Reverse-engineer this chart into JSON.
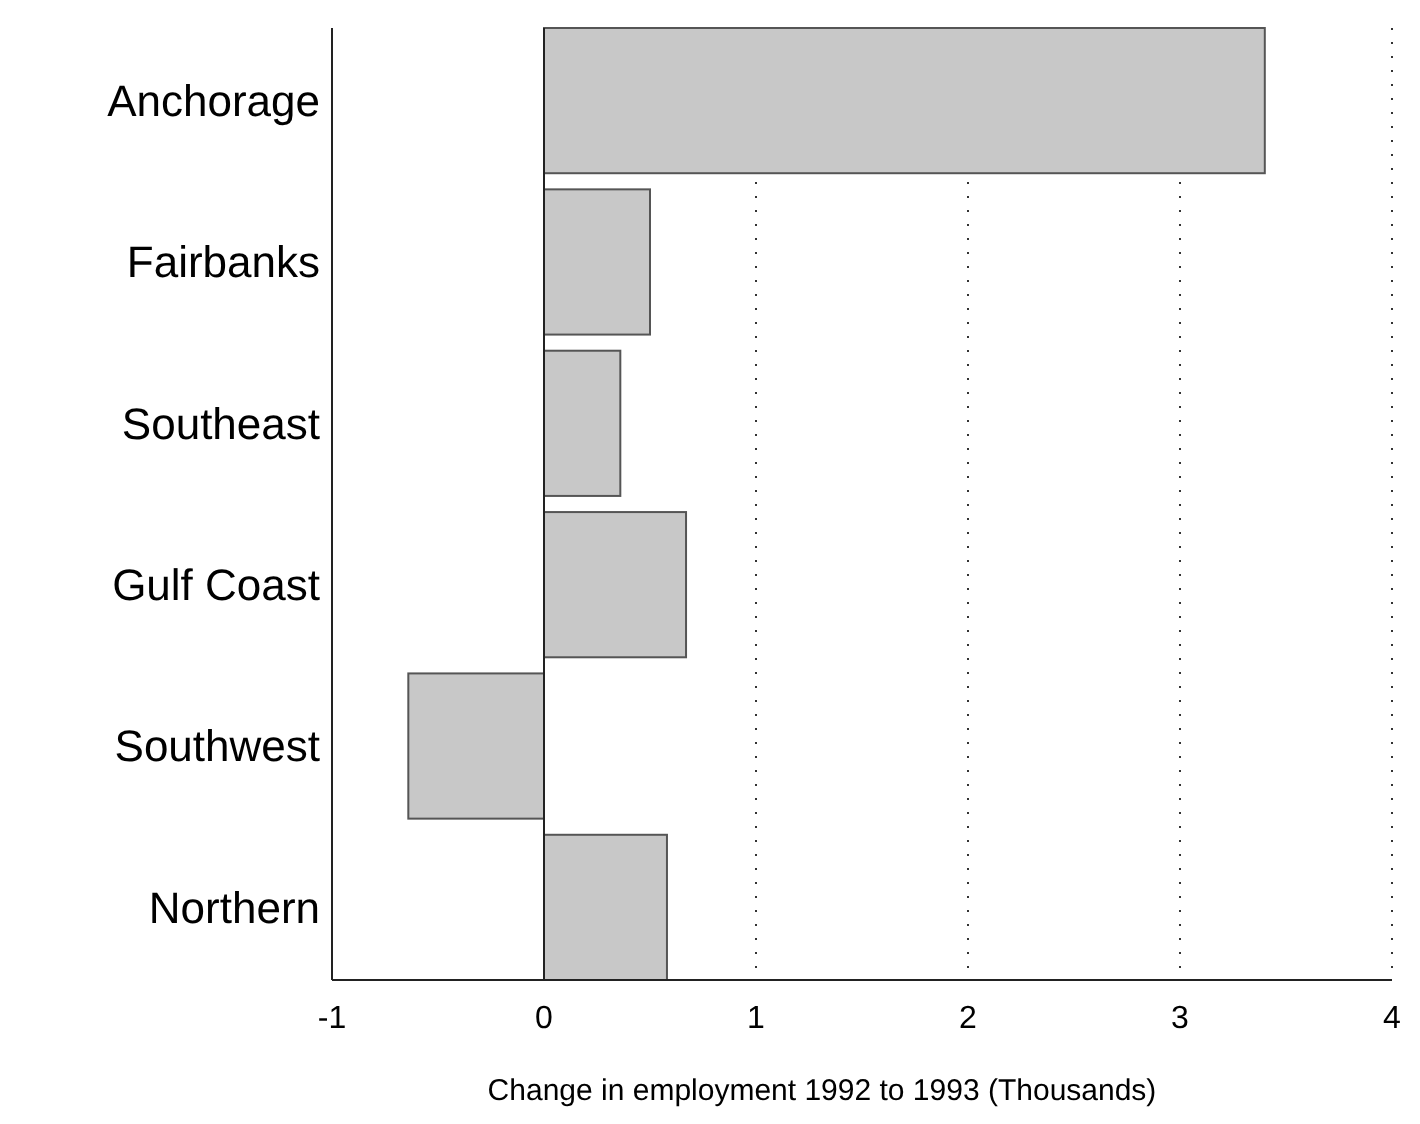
{
  "chart_data": {
    "type": "bar",
    "orientation": "horizontal",
    "xlabel": "Change in employment 1992 to 1993 (Thousands)",
    "categories": [
      "Anchorage",
      "Fairbanks",
      "Southeast",
      "Gulf Coast",
      "Southwest",
      "Northern"
    ],
    "values": [
      3.4,
      0.5,
      0.36,
      0.67,
      -0.64,
      0.58
    ],
    "color": "#c8c8c8",
    "xlim": [
      -1,
      4
    ],
    "xticks": [
      -1,
      0,
      1,
      2,
      3,
      4
    ],
    "grid": "x"
  }
}
